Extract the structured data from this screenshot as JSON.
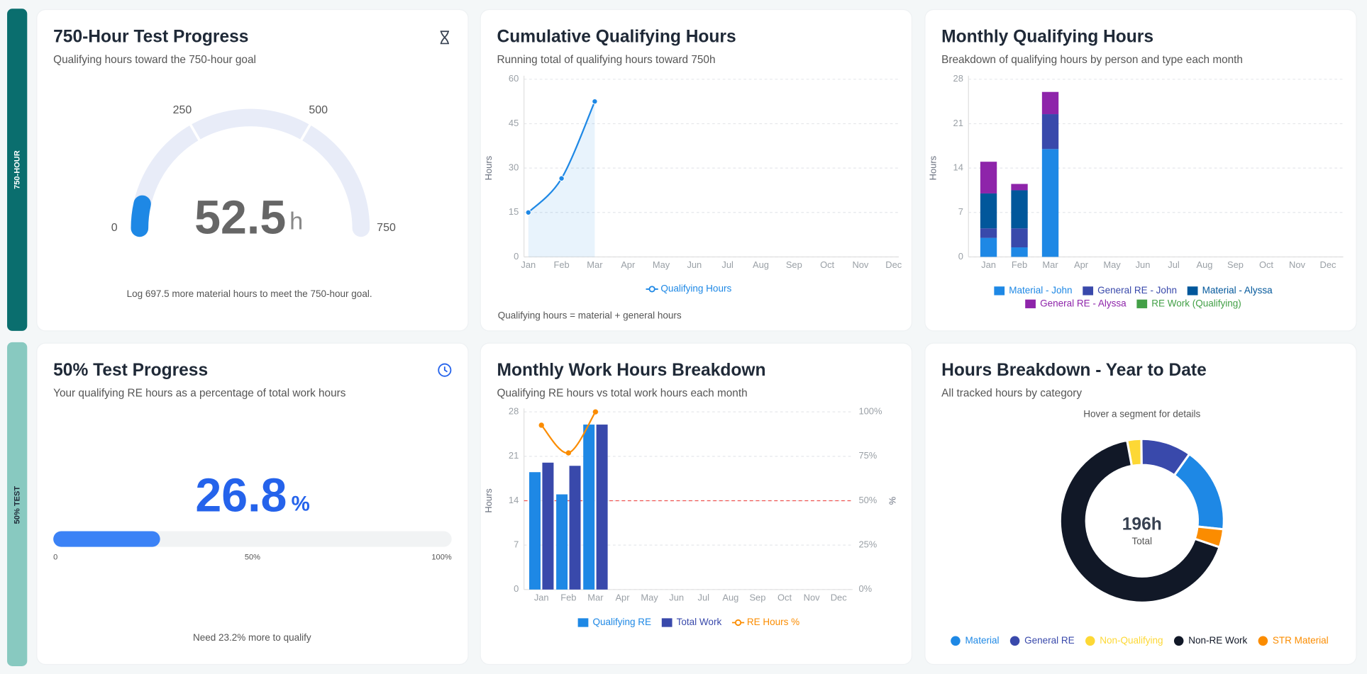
{
  "sections": [
    "750-HOUR",
    "50% TEST"
  ],
  "chart_data": [
    {
      "type": "gauge",
      "title": "750-Hour Test Progress",
      "subtitle": "Qualifying hours toward the 750-hour goal",
      "value": 52.5,
      "unit": "h",
      "xlim": [
        0,
        750
      ],
      "xticks": [
        0,
        250,
        500,
        750
      ],
      "color": "#1e88e5",
      "note": "Log 697.5 more material hours to meet the 750-hour goal."
    },
    {
      "type": "line",
      "title": "Cumulative Qualifying Hours",
      "subtitle": "Running total of qualifying hours toward 750h",
      "categories": [
        "Jan",
        "Feb",
        "Mar",
        "Apr",
        "May",
        "Jun",
        "Jul",
        "Aug",
        "Sep",
        "Oct",
        "Nov",
        "Dec"
      ],
      "series": [
        {
          "name": "Qualifying Hours",
          "color": "#1e88e5",
          "values": [
            15,
            26.5,
            52.5,
            null,
            null,
            null,
            null,
            null,
            null,
            null,
            null,
            null
          ]
        }
      ],
      "ylim": [
        0,
        60
      ],
      "yticks": [
        0,
        15,
        30,
        45,
        60
      ],
      "ylabel": "Hours",
      "grid": true,
      "note": "Qualifying hours = material + general hours"
    },
    {
      "type": "bar",
      "stacked": true,
      "title": "Monthly Qualifying Hours",
      "subtitle": "Breakdown of qualifying hours by person and type each month",
      "categories": [
        "Jan",
        "Feb",
        "Mar",
        "Apr",
        "May",
        "Jun",
        "Jul",
        "Aug",
        "Sep",
        "Oct",
        "Nov",
        "Dec"
      ],
      "series": [
        {
          "name": "Material - John",
          "color": "#1e88e5",
          "values": [
            3,
            1.5,
            17,
            null,
            null,
            null,
            null,
            null,
            null,
            null,
            null,
            null
          ]
        },
        {
          "name": "General RE - John",
          "color": "#3949ab",
          "values": [
            1.5,
            3,
            5.5,
            null,
            null,
            null,
            null,
            null,
            null,
            null,
            null,
            null
          ]
        },
        {
          "name": "Material - Alyssa",
          "color": "#01579b",
          "values": [
            5.5,
            6,
            0,
            null,
            null,
            null,
            null,
            null,
            null,
            null,
            null,
            null
          ]
        },
        {
          "name": "General RE - Alyssa",
          "color": "#8e24aa",
          "values": [
            5,
            1,
            3.5,
            null,
            null,
            null,
            null,
            null,
            null,
            null,
            null,
            null
          ]
        },
        {
          "name": "RE Work (Qualifying)",
          "color": "#43a047",
          "values": [
            0,
            0,
            0,
            null,
            null,
            null,
            null,
            null,
            null,
            null,
            null,
            null
          ]
        }
      ],
      "ylim": [
        0,
        28
      ],
      "yticks": [
        0,
        7,
        14,
        21,
        28
      ],
      "ylabel": "Hours",
      "grid": true
    },
    {
      "type": "progress",
      "title": "50% Test Progress",
      "subtitle": "Your qualifying RE hours as a percentage of total work hours",
      "value": 26.8,
      "unit": "%",
      "xlim": [
        0,
        100
      ],
      "xticks": [
        0,
        {
          "value": 50,
          "label": "50%"
        },
        {
          "value": 100,
          "label": "100%"
        }
      ],
      "color": "#3b82f6",
      "note": "Need 23.2% more to qualify"
    },
    {
      "type": "combo",
      "title": "Monthly Work Hours Breakdown",
      "subtitle": "Qualifying RE hours vs total work hours each month",
      "categories": [
        "Jan",
        "Feb",
        "Mar",
        "Apr",
        "May",
        "Jun",
        "Jul",
        "Aug",
        "Sep",
        "Oct",
        "Nov",
        "Dec"
      ],
      "series": [
        {
          "name": "Qualifying RE",
          "kind": "bar",
          "color": "#1e88e5",
          "values": [
            18.5,
            15,
            26,
            null,
            null,
            null,
            null,
            null,
            null,
            null,
            null,
            null
          ]
        },
        {
          "name": "Total Work",
          "kind": "bar",
          "color": "#3949ab",
          "values": [
            20,
            19.5,
            26,
            null,
            null,
            null,
            null,
            null,
            null,
            null,
            null,
            null
          ]
        },
        {
          "name": "RE Hours %",
          "kind": "line",
          "axis": "y2",
          "color": "#fb8c00",
          "values": [
            92.5,
            76.9,
            100,
            null,
            null,
            null,
            null,
            null,
            null,
            null,
            null,
            null
          ]
        }
      ],
      "ylim": [
        0,
        28
      ],
      "yticks": [
        0,
        7,
        14,
        21,
        28
      ],
      "ylabel": "Hours",
      "y2lim": [
        0,
        100
      ],
      "y2ticks": [
        {
          "value": 0,
          "label": "0%"
        },
        {
          "value": 25,
          "label": "25%"
        },
        {
          "value": 50,
          "label": "50%"
        },
        {
          "value": 75,
          "label": "75%"
        },
        {
          "value": 100,
          "label": "100%"
        }
      ],
      "y2label": "%",
      "reference_line": {
        "value": 50,
        "axis": "y2",
        "color": "#ef5350"
      },
      "grid": true
    },
    {
      "type": "donut",
      "title": "Hours Breakdown - Year to Date",
      "subtitle": "All tracked hours by category",
      "hint": "Hover a segment for details",
      "categories": [
        "Material",
        "General RE",
        "Non-Qualifying",
        "Non-RE Work",
        "STR Material"
      ],
      "values": [
        33,
        19.5,
        5.5,
        131,
        7
      ],
      "colors": [
        "#1e88e5",
        "#3949ab",
        "#fdd835",
        "#111827",
        "#fb8c00"
      ],
      "total_label": "196h",
      "total_caption": "Total"
    }
  ]
}
